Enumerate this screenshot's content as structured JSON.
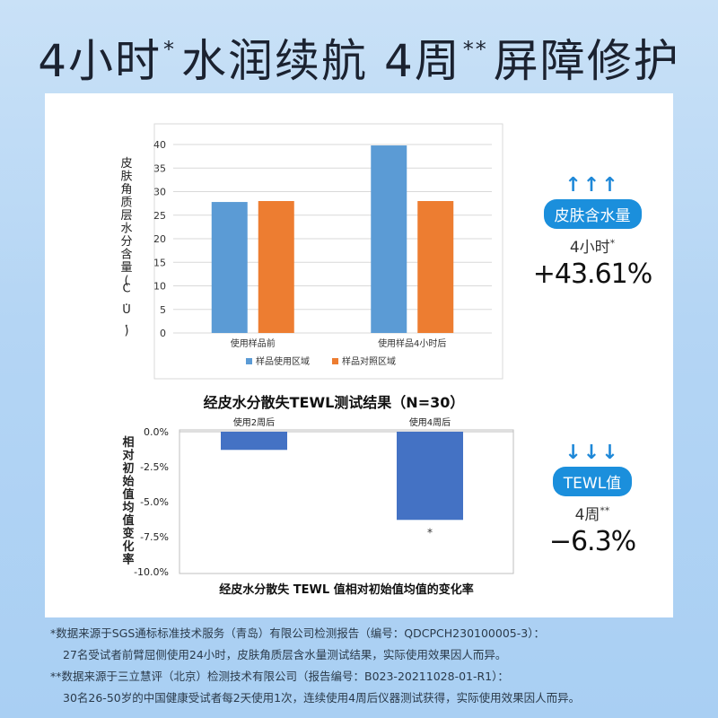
{
  "headline": {
    "part1": "4小时",
    "mark1": "*",
    "part2": "水润续航 4周",
    "mark2": "**",
    "part3": "屏障修护"
  },
  "chart_data": [
    {
      "type": "bar",
      "title": "",
      "ylabel": "皮肤角质层水分含量(C.U.)",
      "xlabel": "",
      "categories": [
        "使用样品前",
        "使用样品4小时后"
      ],
      "series": [
        {
          "name": "样品使用区域",
          "color": "#5b9bd5",
          "values": [
            27.8,
            39.8
          ]
        },
        {
          "name": "样品对照区域",
          "color": "#ed7d31",
          "values": [
            28.0,
            28.0
          ]
        }
      ],
      "ylim": [
        0,
        40
      ],
      "yticks": [
        "0",
        "5",
        "10",
        "15",
        "20",
        "25",
        "30",
        "35",
        "40"
      ],
      "grid": true,
      "legend": "bottom"
    },
    {
      "type": "bar",
      "title": "经皮水分散失TEWL测试结果（N=30）",
      "ylabel": "相对初始值均值变化率",
      "xlabel": "经皮水分散失 TEWL 值相对初始值均值的变化率",
      "categories": [
        "使用2周后",
        "使用4周后"
      ],
      "series": [
        {
          "name": "",
          "color": "#4472c4",
          "values": [
            -1.3,
            -6.3
          ]
        }
      ],
      "annotations": [
        "",
        "*"
      ],
      "ylim": [
        -10,
        0
      ],
      "yticks": [
        "0.0%",
        "-2.5%",
        "-5.0%",
        "-7.5%",
        "-10.0%"
      ],
      "grid": false
    }
  ],
  "side1": {
    "arrows": "↑↑↑",
    "label": "皮肤含水量",
    "period": "4小时",
    "mark": "*",
    "value": "+43.61%",
    "arrow_color": "#1e88d8"
  },
  "side2": {
    "arrows": "↓↓↓",
    "label": "TEWL值",
    "period": "4周",
    "mark": "**",
    "value": "−6.3%",
    "arrow_color": "#1e88d8"
  },
  "notes": {
    "line1": "*数据来源于SGS通标标准技术服务（青岛）有限公司检测报告（编号：QDCPCH230100005-3）：",
    "line2": "27名受试者前臂屈侧使用24小时，皮肤角质层含水量测试结果，实际使用效果因人而异。",
    "line3": "**数据来源于三立慧评（北京）检测技术有限公司（报告编号：B023-20211028-01-R1）：",
    "line4": "30名26-50岁的中国健康受试者每2天使用1次，连续使用4周后仪器测试获得，实际使用效果因人而异。"
  }
}
